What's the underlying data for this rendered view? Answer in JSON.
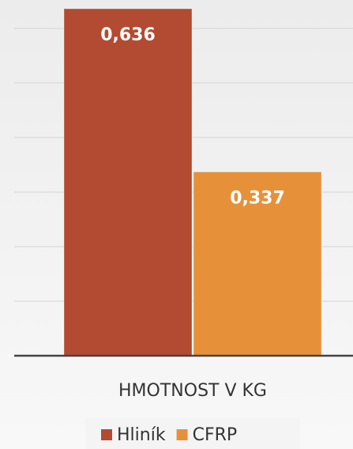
{
  "chart_data": {
    "type": "bar",
    "categories": [
      "HMOTNOST V KG"
    ],
    "series": [
      {
        "name": "Hliník",
        "color": "#b24b31",
        "values": [
          0.636
        ],
        "value_labels": [
          "0,636"
        ]
      },
      {
        "name": "CFRP",
        "color": "#e6913a",
        "values": [
          0.337
        ],
        "value_labels": [
          "0,337"
        ]
      }
    ],
    "ylim": [
      0,
      0.652
    ],
    "yticks": [
      0,
      0.1,
      0.2,
      0.3,
      0.4,
      0.5,
      0.6
    ],
    "grid": true
  }
}
